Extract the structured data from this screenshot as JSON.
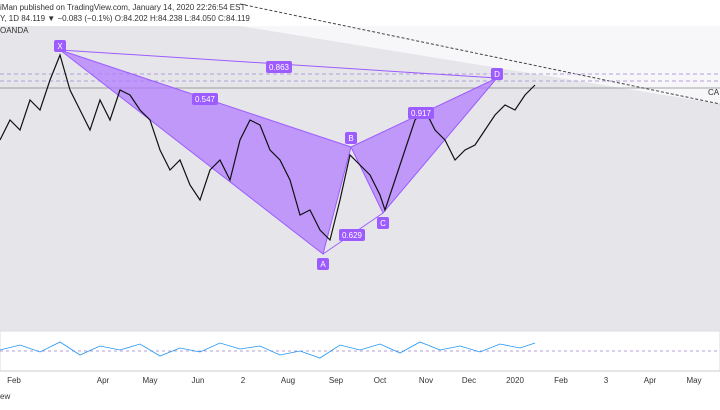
{
  "header": {
    "author": "iMan published on TradingView.com, January 14, 2020 22:26:54 EST",
    "quote": "Y, 1D  84.119  ▼ −0.083 (−0.1%)  O:84.202  H:84.238  L:84.050  C:84.119",
    "source": "OANDA"
  },
  "pattern": {
    "points": [
      "X",
      "A",
      "B",
      "C",
      "D"
    ],
    "ratios": {
      "xd": "0.863",
      "xb": "0.547",
      "bd": "0.917",
      "ac": "0.629"
    }
  },
  "price_label": "CA",
  "x_axis": [
    "Feb",
    "Apr",
    "May",
    "Jun",
    "2",
    "Aug",
    "Sep",
    "Oct",
    "Nov",
    "Dec",
    "2020",
    "Feb",
    "3",
    "Apr",
    "May"
  ],
  "footer": "ew"
}
